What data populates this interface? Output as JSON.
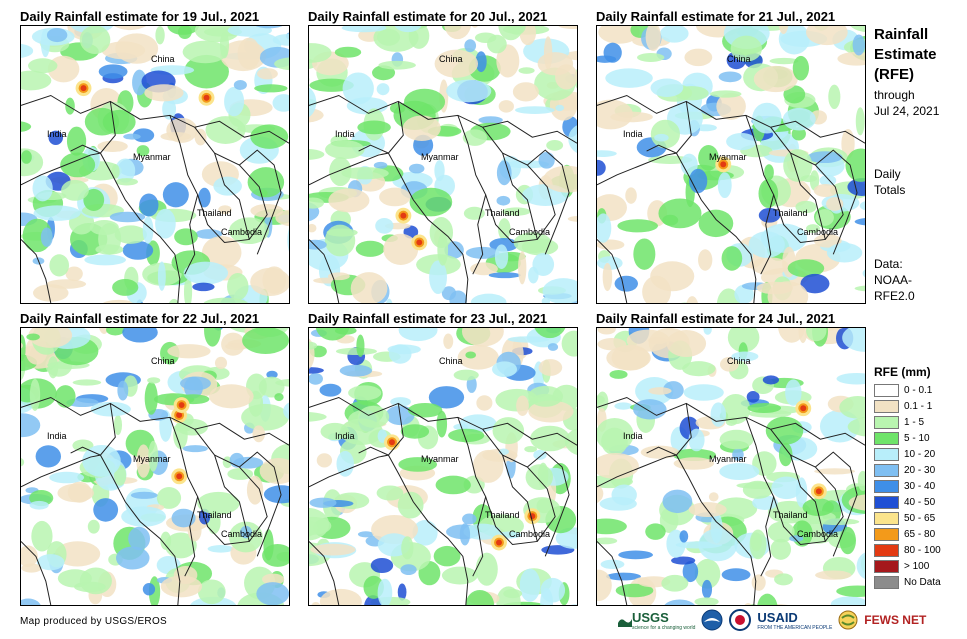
{
  "panels": [
    {
      "title": "Daily Rainfall estimate for 19 Jul., 2021",
      "labels": {
        "china": "China",
        "india": "India",
        "myanmar": "Myanmar",
        "thailand": "Thailand",
        "cambodia": "Cambodia"
      }
    },
    {
      "title": "Daily Rainfall estimate for 20 Jul., 2021",
      "labels": {
        "china": "China",
        "india": "India",
        "myanmar": "Myanmar",
        "thailand": "Thailand",
        "cambodia": "Cambodia"
      }
    },
    {
      "title": "Daily Rainfall estimate for 21 Jul., 2021",
      "labels": {
        "china": "China",
        "india": "India",
        "myanmar": "Myanmar",
        "thailand": "Thailand",
        "cambodia": "Cambodia"
      }
    },
    {
      "title": "Daily Rainfall estimate for 22 Jul., 2021",
      "labels": {
        "china": "China",
        "india": "India",
        "myanmar": "Myanmar",
        "thailand": "Thailand",
        "cambodia": "Cambodia"
      }
    },
    {
      "title": "Daily Rainfall estimate for 23 Jul., 2021",
      "labels": {
        "china": "China",
        "india": "India",
        "myanmar": "Myanmar",
        "thailand": "Thailand",
        "cambodia": "Cambodia"
      }
    },
    {
      "title": "Daily Rainfall estimate for 24 Jul., 2021",
      "labels": {
        "china": "China",
        "india": "India",
        "myanmar": "Myanmar",
        "thailand": "Thailand",
        "cambodia": "Cambodia"
      }
    }
  ],
  "sidebar": {
    "title_lines": [
      "Rainfall",
      "Estimate",
      "(RFE)"
    ],
    "through": [
      "through",
      "Jul 24, 2021"
    ],
    "totals": [
      "Daily",
      "Totals"
    ],
    "data_source": [
      "Data:",
      "NOAA-",
      "RFE2.0"
    ]
  },
  "legend": {
    "title": "RFE (mm)",
    "items": [
      {
        "label": "0 - 0.1",
        "color": "#ffffff"
      },
      {
        "label": "0.1 - 1",
        "color": "#f2e2c4"
      },
      {
        "label": "1 - 5",
        "color": "#b9f5b0"
      },
      {
        "label": "5 - 10",
        "color": "#6fe46a"
      },
      {
        "label": "10 - 20",
        "color": "#b8eefa"
      },
      {
        "label": "20 - 30",
        "color": "#7fbff2"
      },
      {
        "label": "30 - 40",
        "color": "#3f8fe8"
      },
      {
        "label": "40 - 50",
        "color": "#1f4fd4"
      },
      {
        "label": "50 - 65",
        "color": "#fbe48c"
      },
      {
        "label": "65 - 80",
        "color": "#f39a1a"
      },
      {
        "label": "80 - 100",
        "color": "#e33a12"
      },
      {
        "label": "> 100",
        "color": "#a5181c"
      },
      {
        "label": "No Data",
        "color": "#8c8c8c"
      }
    ]
  },
  "credit": "Map produced by USGS/EROS",
  "logos": {
    "usgs": "USGS",
    "usgs_tag": "science for a changing world",
    "usaid": "USAID",
    "usaid_tag": "FROM THE AMERICAN PEOPLE",
    "fewsnet": "FEWS NET"
  }
}
